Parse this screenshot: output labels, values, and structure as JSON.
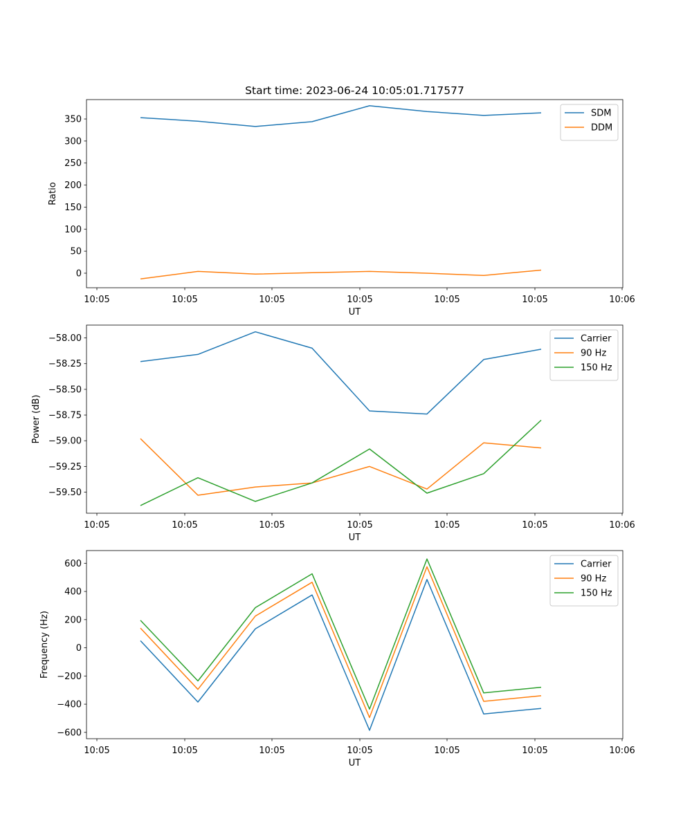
{
  "figure": {
    "title": "Start time: 2023-06-24 10:05:01.717577"
  },
  "chart_data": [
    {
      "type": "line",
      "title": "Start time: 2023-06-24 10:05:01.717577",
      "xlabel": "UT",
      "ylabel": "Ratio",
      "x_ticks": [
        "10:05",
        "10:05",
        "10:05",
        "10:05",
        "10:05",
        "10:05",
        "10:06"
      ],
      "y_ticks": [
        "0",
        "50",
        "100",
        "150",
        "200",
        "250",
        "300",
        "350"
      ],
      "ylim": [
        -33,
        394
      ],
      "grid": false,
      "legend": "top-right",
      "series": [
        {
          "name": "SDM",
          "color": "#1f77b4",
          "values": [
            353,
            345,
            333,
            344,
            380,
            367,
            358,
            364
          ]
        },
        {
          "name": "DDM",
          "color": "#ff7f0e",
          "values": [
            -13,
            4,
            -2,
            1,
            4,
            0,
            -5,
            7
          ]
        }
      ]
    },
    {
      "type": "line",
      "title": "",
      "xlabel": "UT",
      "ylabel": "Power (dB)",
      "x_ticks": [
        "10:05",
        "10:05",
        "10:05",
        "10:05",
        "10:05",
        "10:05",
        "10:06"
      ],
      "y_ticks": [
        "−59.50",
        "−59.25",
        "−59.00",
        "−58.75",
        "−58.50",
        "−58.25",
        "−58.00"
      ],
      "ylim": [
        -59.705,
        -57.875
      ],
      "grid": false,
      "legend": "top-right",
      "series": [
        {
          "name": "Carrier",
          "color": "#1f77b4",
          "values": [
            -58.23,
            -58.16,
            -57.94,
            -58.1,
            -58.71,
            -58.74,
            -58.21,
            -58.11
          ]
        },
        {
          "name": "90 Hz",
          "color": "#ff7f0e",
          "values": [
            -58.98,
            -59.53,
            -59.45,
            -59.41,
            -59.25,
            -59.47,
            -59.02,
            -59.07
          ]
        },
        {
          "name": "150 Hz",
          "color": "#2ca02c",
          "values": [
            -59.63,
            -59.36,
            -59.59,
            -59.41,
            -59.08,
            -59.51,
            -59.32,
            -58.8
          ]
        }
      ]
    },
    {
      "type": "line",
      "title": "",
      "xlabel": "UT",
      "ylabel": "Frequency (Hz)",
      "x_ticks": [
        "10:05",
        "10:05",
        "10:05",
        "10:05",
        "10:05",
        "10:05",
        "10:06"
      ],
      "y_ticks": [
        "−600",
        "−400",
        "−200",
        "0",
        "200",
        "400",
        "600"
      ],
      "ylim": [
        -645,
        690
      ],
      "grid": false,
      "legend": "top-right",
      "series": [
        {
          "name": "Carrier",
          "color": "#1f77b4",
          "values": [
            50,
            -385,
            135,
            375,
            -585,
            485,
            -470,
            -430
          ]
        },
        {
          "name": "90 Hz",
          "color": "#ff7f0e",
          "values": [
            140,
            -295,
            225,
            465,
            -495,
            575,
            -380,
            -340
          ]
        },
        {
          "name": "150 Hz",
          "color": "#2ca02c",
          "values": [
            195,
            -235,
            285,
            525,
            -435,
            630,
            -320,
            -280
          ]
        }
      ]
    }
  ]
}
